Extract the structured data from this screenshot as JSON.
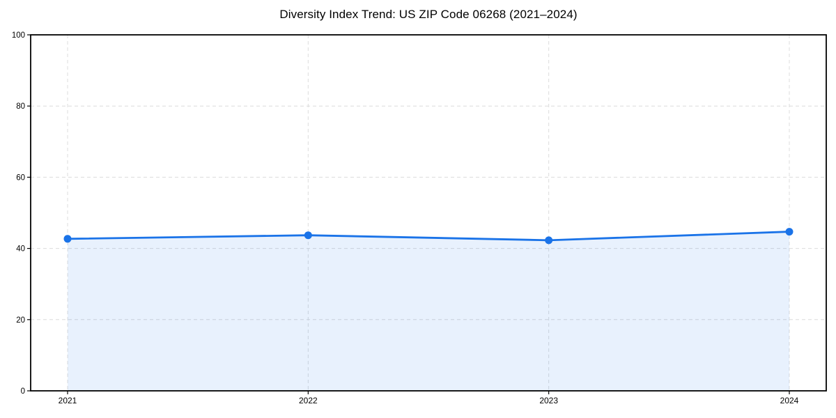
{
  "figure": {
    "background": "#ffffff"
  },
  "chart_data": {
    "type": "area",
    "title": "Diversity Index Trend: US ZIP Code 06268 (2021–2024)",
    "categories": [
      "2021",
      "2022",
      "2023",
      "2024"
    ],
    "series": [
      {
        "name": "Diversity Index",
        "values": [
          42.7,
          43.7,
          42.3,
          44.7
        ]
      }
    ],
    "xlabel": "",
    "ylabel": "",
    "ylim": [
      0,
      100
    ],
    "yticks": [
      0,
      20,
      40,
      60,
      80,
      100
    ],
    "grid": true,
    "grid_style": "dashed",
    "legend": "none",
    "marker": "circle",
    "colors": {
      "line": "#1a73e8",
      "marker": "#1a73e8",
      "fill": "#1a73e8",
      "fill_opacity": 0.1,
      "grid": "#dcdcdc",
      "spine": "#000000",
      "tick_text": "#000000",
      "background": "#ffffff"
    }
  }
}
